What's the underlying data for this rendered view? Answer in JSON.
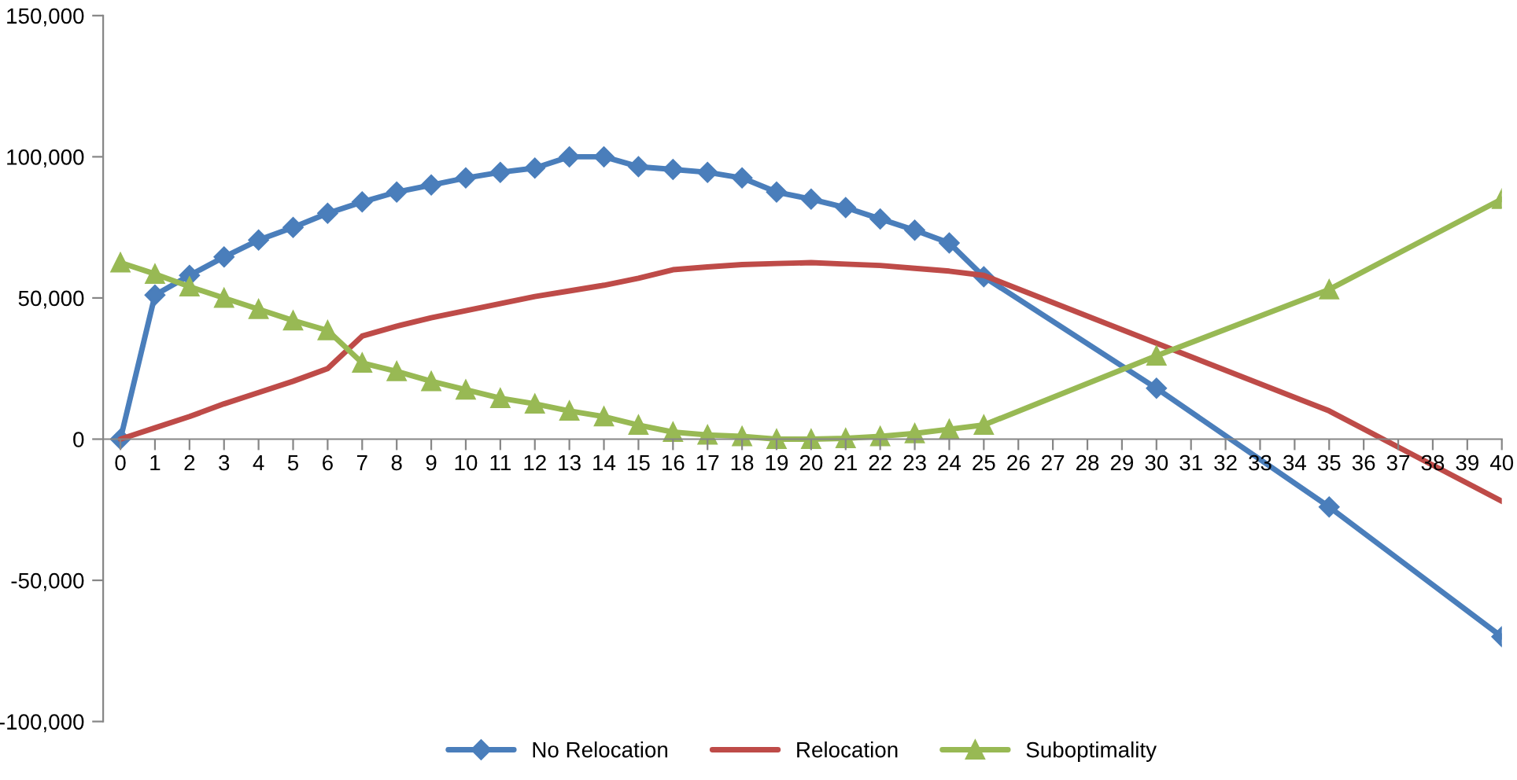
{
  "chart_data": {
    "type": "line",
    "xlim": [
      -0.5,
      40
    ],
    "xticks": [
      0,
      1,
      2,
      3,
      4,
      5,
      6,
      7,
      8,
      9,
      10,
      11,
      12,
      13,
      14,
      15,
      16,
      17,
      18,
      19,
      20,
      21,
      22,
      23,
      24,
      25,
      26,
      27,
      28,
      29,
      30,
      31,
      32,
      33,
      34,
      35,
      36,
      37,
      38,
      39,
      40
    ],
    "ylim": [
      -100000,
      150000
    ],
    "yticks": [
      {
        "value": -100000,
        "label": "-100,000"
      },
      {
        "value": -50000,
        "label": "-50,000"
      },
      {
        "value": 0,
        "label": "0"
      },
      {
        "value": 50000,
        "label": "50,000"
      },
      {
        "value": 100000,
        "label": "100,000"
      },
      {
        "value": 150000,
        "label": "150,000"
      }
    ],
    "grid": false,
    "legend": "bottom",
    "line_style": "solid",
    "series": [
      {
        "name": "No Relocation",
        "color": "#4a7ebb",
        "marker": "diamond",
        "x": [
          0,
          1,
          2,
          3,
          4,
          5,
          6,
          7,
          8,
          9,
          10,
          11,
          12,
          13,
          14,
          15,
          16,
          17,
          18,
          19,
          20,
          21,
          22,
          23,
          24,
          25,
          30,
          35,
          40
        ],
        "values": [
          0,
          51000,
          58000,
          64500,
          70500,
          75000,
          80000,
          84000,
          87500,
          90000,
          92500,
          94500,
          96000,
          100000,
          100000,
          96500,
          95500,
          94500,
          92500,
          87500,
          85000,
          82000,
          78000,
          74000,
          69500,
          57500,
          18000,
          -24000,
          -70000
        ]
      },
      {
        "name": "Relocation",
        "color": "#be4b48",
        "marker": "none",
        "x": [
          0,
          1,
          2,
          3,
          4,
          5,
          6,
          7,
          8,
          9,
          10,
          11,
          12,
          13,
          14,
          15,
          16,
          17,
          18,
          19,
          20,
          21,
          22,
          23,
          24,
          25,
          30,
          35,
          40
        ],
        "values": [
          0,
          4000,
          8000,
          12500,
          16500,
          20500,
          25000,
          36500,
          40000,
          43000,
          45500,
          48000,
          50500,
          52500,
          54500,
          57000,
          60000,
          61000,
          61800,
          62200,
          62500,
          62000,
          61500,
          60500,
          59500,
          58000,
          34000,
          10000,
          -22000
        ]
      },
      {
        "name": "Suboptimality",
        "color": "#98b954",
        "marker": "triangle",
        "x": [
          0,
          1,
          2,
          3,
          4,
          5,
          6,
          7,
          8,
          9,
          10,
          11,
          12,
          13,
          14,
          15,
          16,
          17,
          18,
          19,
          20,
          21,
          22,
          23,
          24,
          25,
          30,
          35,
          40
        ],
        "values": [
          62500,
          58500,
          54000,
          50000,
          46000,
          42000,
          38500,
          27000,
          24000,
          20500,
          17500,
          14500,
          12500,
          10000,
          8000,
          5000,
          2500,
          1500,
          1000,
          0,
          0,
          300,
          1000,
          2000,
          3500,
          5000,
          29500,
          53000,
          85000
        ]
      }
    ]
  }
}
